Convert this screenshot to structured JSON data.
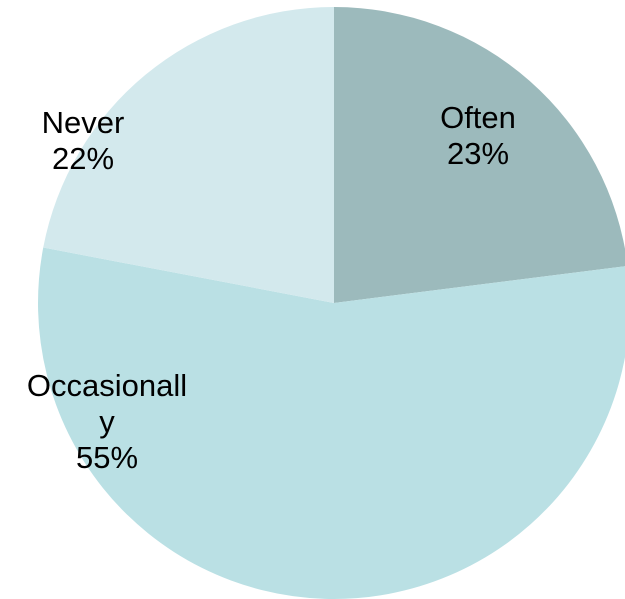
{
  "chart_data": {
    "type": "pie",
    "title": "",
    "legend": "none",
    "slices": [
      {
        "category": "Often",
        "value": 23,
        "value_label": "23%",
        "label_lines": [
          "Often"
        ],
        "color": "#9CBABC"
      },
      {
        "category": "Occasionally",
        "value": 55,
        "value_label": "55%",
        "label_lines": [
          "Occasionall",
          "y"
        ],
        "color": "#BAE0E4"
      },
      {
        "category": "Never",
        "value": 22,
        "value_label": "22%",
        "label_lines": [
          "Never"
        ],
        "color": "#D3E9ED"
      }
    ]
  }
}
